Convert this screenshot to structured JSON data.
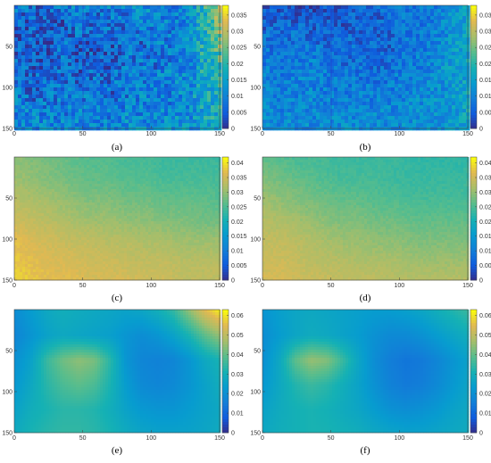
{
  "chart_data": [
    {
      "type": "heatmap",
      "caption": "(a)",
      "xticks": [
        "0",
        "50",
        "100",
        "150"
      ],
      "yticks": [
        "50",
        "100",
        "150"
      ],
      "colorbar_ticks": [
        "0",
        "0.005",
        "0.01",
        "0.015",
        "0.02",
        "0.025",
        "0.03",
        "0.035"
      ],
      "colorbar_range": [
        0,
        0.038
      ],
      "grid": [
        [
          0.009,
          0.008,
          0.006,
          0.01,
          0.011,
          0.008,
          0.011,
          0.01,
          0.012,
          0.011,
          0.01,
          0.012,
          0.02,
          0.031
        ],
        [
          0.006,
          0.005,
          0.008,
          0.004,
          0.011,
          0.006,
          0.009,
          0.007,
          0.01,
          0.009,
          0.011,
          0.011,
          0.019,
          0.028
        ],
        [
          0.004,
          0.007,
          0.003,
          0.008,
          0.006,
          0.005,
          0.006,
          0.011,
          0.006,
          0.011,
          0.008,
          0.012,
          0.02,
          0.026
        ],
        [
          0.008,
          0.005,
          0.006,
          0.009,
          0.005,
          0.007,
          0.004,
          0.008,
          0.01,
          0.007,
          0.01,
          0.011,
          0.018,
          0.022
        ],
        [
          0.006,
          0.007,
          0.009,
          0.007,
          0.006,
          0.008,
          0.008,
          0.011,
          0.008,
          0.01,
          0.012,
          0.011,
          0.018,
          0.02
        ],
        [
          0.01,
          0.007,
          0.008,
          0.01,
          0.009,
          0.011,
          0.006,
          0.009,
          0.011,
          0.009,
          0.01,
          0.013,
          0.017,
          0.018
        ],
        [
          0.011,
          0.01,
          0.011,
          0.009,
          0.01,
          0.01,
          0.01,
          0.011,
          0.01,
          0.011,
          0.012,
          0.012,
          0.017,
          0.017
        ],
        [
          0.012,
          0.012,
          0.011,
          0.012,
          0.011,
          0.012,
          0.011,
          0.012,
          0.012,
          0.012,
          0.012,
          0.013,
          0.016,
          0.015
        ]
      ]
    },
    {
      "type": "heatmap",
      "caption": "(b)",
      "xticks": [
        "0",
        "50",
        "100",
        "150"
      ],
      "yticks": [
        "50",
        "100",
        "150"
      ],
      "colorbar_ticks": [
        "0",
        "0.005",
        "0.01",
        "0.015",
        "0.02",
        "0.025",
        "0.03",
        "0.035"
      ],
      "colorbar_range": [
        0,
        0.038
      ],
      "grid": [
        [
          0.005,
          0.004,
          0.003,
          0.004,
          0.005,
          0.006,
          0.006,
          0.007,
          0.008,
          0.009,
          0.009,
          0.01,
          0.013,
          0.016
        ],
        [
          0.006,
          0.008,
          0.007,
          0.005,
          0.007,
          0.005,
          0.006,
          0.006,
          0.007,
          0.008,
          0.009,
          0.01,
          0.013,
          0.016
        ],
        [
          0.008,
          0.007,
          0.009,
          0.008,
          0.006,
          0.008,
          0.006,
          0.007,
          0.006,
          0.008,
          0.009,
          0.011,
          0.014,
          0.016
        ],
        [
          0.009,
          0.01,
          0.009,
          0.01,
          0.009,
          0.007,
          0.008,
          0.007,
          0.008,
          0.009,
          0.01,
          0.012,
          0.014,
          0.016
        ],
        [
          0.01,
          0.009,
          0.011,
          0.01,
          0.01,
          0.009,
          0.009,
          0.008,
          0.009,
          0.01,
          0.011,
          0.012,
          0.014,
          0.016
        ],
        [
          0.01,
          0.011,
          0.01,
          0.011,
          0.01,
          0.01,
          0.01,
          0.01,
          0.01,
          0.011,
          0.012,
          0.012,
          0.014,
          0.016
        ],
        [
          0.011,
          0.011,
          0.011,
          0.011,
          0.011,
          0.011,
          0.01,
          0.011,
          0.011,
          0.012,
          0.012,
          0.013,
          0.014,
          0.016
        ],
        [
          0.012,
          0.012,
          0.012,
          0.012,
          0.012,
          0.012,
          0.012,
          0.012,
          0.012,
          0.012,
          0.013,
          0.013,
          0.014,
          0.016
        ]
      ]
    },
    {
      "type": "heatmap",
      "caption": "(c)",
      "xticks": [
        "0",
        "50",
        "100",
        "150"
      ],
      "yticks": [
        "50",
        "100",
        "150"
      ],
      "colorbar_ticks": [
        "0",
        "0.005",
        "0.01",
        "0.015",
        "0.02",
        "0.025",
        "0.03",
        "0.035",
        "0.04"
      ],
      "colorbar_range": [
        0,
        0.042
      ],
      "grid": [
        [
          0.03,
          0.029,
          0.028,
          0.027,
          0.026,
          0.026,
          0.025,
          0.025,
          0.024,
          0.024,
          0.024,
          0.024
        ],
        [
          0.031,
          0.03,
          0.029,
          0.028,
          0.027,
          0.027,
          0.026,
          0.026,
          0.025,
          0.025,
          0.025,
          0.025
        ],
        [
          0.033,
          0.032,
          0.031,
          0.03,
          0.029,
          0.029,
          0.028,
          0.028,
          0.027,
          0.027,
          0.027,
          0.026
        ],
        [
          0.035,
          0.034,
          0.033,
          0.032,
          0.031,
          0.031,
          0.03,
          0.03,
          0.029,
          0.029,
          0.028,
          0.028
        ],
        [
          0.037,
          0.036,
          0.035,
          0.034,
          0.034,
          0.033,
          0.033,
          0.032,
          0.032,
          0.031,
          0.031,
          0.031
        ],
        [
          0.038,
          0.037,
          0.036,
          0.036,
          0.035,
          0.035,
          0.034,
          0.034,
          0.034,
          0.033,
          0.033,
          0.033
        ],
        [
          0.039,
          0.038,
          0.037,
          0.037,
          0.036,
          0.036,
          0.036,
          0.035,
          0.035,
          0.034,
          0.034,
          0.034
        ]
      ]
    },
    {
      "type": "heatmap",
      "caption": "(d)",
      "xticks": [
        "0",
        "50",
        "100",
        "150"
      ],
      "yticks": [
        "50",
        "100",
        "150"
      ],
      "colorbar_ticks": [
        "0",
        "0.005",
        "0.01",
        "0.015",
        "0.02",
        "0.025",
        "0.03",
        "0.035",
        "0.04"
      ],
      "colorbar_range": [
        0,
        0.042
      ],
      "grid": [
        [
          0.027,
          0.026,
          0.025,
          0.025,
          0.024,
          0.024,
          0.024,
          0.024,
          0.023,
          0.023,
          0.023,
          0.023
        ],
        [
          0.029,
          0.028,
          0.027,
          0.026,
          0.025,
          0.025,
          0.025,
          0.024,
          0.024,
          0.024,
          0.024,
          0.024
        ],
        [
          0.031,
          0.03,
          0.029,
          0.028,
          0.027,
          0.027,
          0.026,
          0.026,
          0.025,
          0.025,
          0.025,
          0.025
        ],
        [
          0.033,
          0.032,
          0.031,
          0.03,
          0.029,
          0.029,
          0.028,
          0.028,
          0.027,
          0.027,
          0.027,
          0.027
        ],
        [
          0.034,
          0.034,
          0.033,
          0.032,
          0.031,
          0.031,
          0.03,
          0.03,
          0.029,
          0.029,
          0.029,
          0.029
        ],
        [
          0.035,
          0.035,
          0.034,
          0.033,
          0.033,
          0.032,
          0.032,
          0.032,
          0.031,
          0.031,
          0.031,
          0.031
        ],
        [
          0.036,
          0.036,
          0.035,
          0.035,
          0.034,
          0.034,
          0.034,
          0.033,
          0.033,
          0.033,
          0.033,
          0.033
        ]
      ]
    },
    {
      "type": "heatmap",
      "caption": "(e)",
      "xticks": [
        "0",
        "50",
        "100",
        "150"
      ],
      "yticks": [
        "50",
        "100",
        "150"
      ],
      "colorbar_ticks": [
        "0",
        "0.01",
        "0.02",
        "0.03",
        "0.04",
        "0.05",
        "0.06"
      ],
      "colorbar_range": [
        0,
        0.063
      ],
      "grid": [
        [
          0.02,
          0.024,
          0.028,
          0.03,
          0.029,
          0.028,
          0.027,
          0.026,
          0.027,
          0.03,
          0.035,
          0.045,
          0.055,
          0.062
        ],
        [
          0.018,
          0.022,
          0.026,
          0.028,
          0.027,
          0.026,
          0.025,
          0.022,
          0.02,
          0.022,
          0.026,
          0.032,
          0.04,
          0.046
        ],
        [
          0.021,
          0.026,
          0.036,
          0.042,
          0.045,
          0.043,
          0.034,
          0.022,
          0.018,
          0.017,
          0.018,
          0.022,
          0.028,
          0.032
        ],
        [
          0.023,
          0.028,
          0.034,
          0.038,
          0.04,
          0.038,
          0.032,
          0.024,
          0.019,
          0.018,
          0.019,
          0.022,
          0.026,
          0.03
        ],
        [
          0.026,
          0.03,
          0.032,
          0.034,
          0.034,
          0.033,
          0.03,
          0.026,
          0.023,
          0.022,
          0.022,
          0.024,
          0.026,
          0.028
        ],
        [
          0.029,
          0.032,
          0.034,
          0.035,
          0.035,
          0.034,
          0.032,
          0.029,
          0.027,
          0.026,
          0.026,
          0.026,
          0.027,
          0.029
        ]
      ]
    },
    {
      "type": "heatmap",
      "caption": "(f)",
      "xticks": [
        "0",
        "50",
        "100",
        "150"
      ],
      "yticks": [
        "50",
        "100",
        "150"
      ],
      "colorbar_ticks": [
        "0",
        "0.01",
        "0.02",
        "0.03",
        "0.04",
        "0.05",
        "0.06"
      ],
      "colorbar_range": [
        0,
        0.063
      ],
      "grid": [
        [
          0.022,
          0.025,
          0.027,
          0.028,
          0.027,
          0.026,
          0.025,
          0.024,
          0.024,
          0.025,
          0.027,
          0.03,
          0.033,
          0.036
        ],
        [
          0.02,
          0.024,
          0.027,
          0.029,
          0.028,
          0.026,
          0.024,
          0.021,
          0.019,
          0.019,
          0.021,
          0.024,
          0.027,
          0.03
        ],
        [
          0.021,
          0.028,
          0.04,
          0.046,
          0.044,
          0.036,
          0.027,
          0.02,
          0.016,
          0.014,
          0.015,
          0.018,
          0.022,
          0.026
        ],
        [
          0.023,
          0.028,
          0.033,
          0.036,
          0.034,
          0.03,
          0.026,
          0.021,
          0.017,
          0.015,
          0.016,
          0.019,
          0.023,
          0.027
        ],
        [
          0.026,
          0.029,
          0.031,
          0.032,
          0.031,
          0.029,
          0.027,
          0.024,
          0.021,
          0.02,
          0.021,
          0.023,
          0.026,
          0.028
        ],
        [
          0.028,
          0.03,
          0.031,
          0.032,
          0.032,
          0.031,
          0.03,
          0.028,
          0.027,
          0.026,
          0.026,
          0.027,
          0.028,
          0.029
        ]
      ]
    }
  ]
}
